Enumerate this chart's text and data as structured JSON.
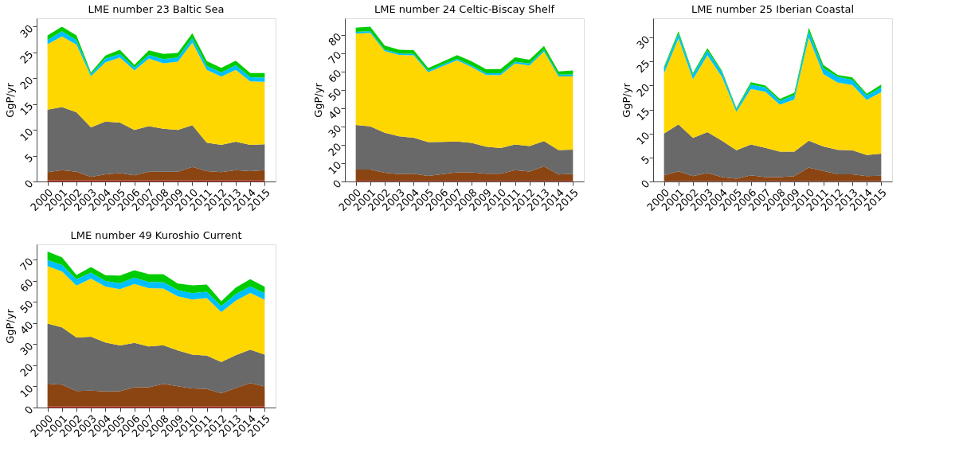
{
  "chart_data": [
    {
      "type": "area",
      "title": "LME number 23 Baltic Sea",
      "ylabel": "GgP/yr",
      "stacked": true,
      "grid": false,
      "categories": [
        "2000",
        "2001",
        "2002",
        "2003",
        "2004",
        "2005",
        "2006",
        "2007",
        "2008",
        "2009",
        "2010",
        "2011",
        "2012",
        "2013",
        "2014",
        "2015"
      ],
      "ylim": [
        0,
        31.6
      ],
      "yticks": [
        0,
        5,
        10,
        15,
        20,
        25,
        30
      ],
      "series": [
        {
          "color": "#d62728",
          "values": [
            0.2,
            0.2,
            0.2,
            0.2,
            0.2,
            0.2,
            0.2,
            0.2,
            0.2,
            0.2,
            0.2,
            0.2,
            0.2,
            0.2,
            0.2,
            0.2
          ]
        },
        {
          "color": "#8b4513",
          "values": [
            1.6,
            2.0,
            1.7,
            0.7,
            1.2,
            1.4,
            1.0,
            1.7,
            1.7,
            1.7,
            2.6,
            1.8,
            1.6,
            2.0,
            1.8,
            2.0
          ]
        },
        {
          "color": "#696969",
          "values": [
            12.1,
            12.2,
            11.5,
            9.6,
            10.2,
            9.8,
            8.8,
            8.8,
            8.3,
            8.1,
            8.1,
            5.5,
            5.3,
            5.5,
            5.1,
            5.0
          ]
        },
        {
          "color": "#ffd700",
          "values": [
            12.7,
            13.7,
            13.1,
            9.9,
            11.5,
            12.6,
            11.5,
            13.1,
            12.7,
            13.2,
            16.0,
            14.1,
            13.2,
            13.9,
            12.3,
            12.1
          ]
        },
        {
          "color": "#00bfff",
          "values": [
            0.8,
            1.0,
            0.9,
            0.4,
            0.7,
            0.7,
            0.6,
            0.7,
            0.8,
            0.8,
            0.9,
            0.8,
            0.8,
            0.9,
            0.8,
            0.8
          ]
        },
        {
          "color": "#00cc00",
          "values": [
            0.9,
            0.9,
            0.9,
            0.3,
            0.6,
            0.8,
            0.5,
            0.9,
            1.0,
            0.9,
            0.9,
            0.9,
            0.9,
            0.9,
            0.8,
            0.9
          ]
        }
      ]
    },
    {
      "type": "area",
      "title": "LME number 24 Celtic-Biscay Shelf",
      "ylabel": "GgP/yr",
      "stacked": true,
      "grid": false,
      "categories": [
        "2000",
        "2001",
        "2002",
        "2003",
        "2004",
        "2005",
        "2006",
        "2007",
        "2008",
        "2009",
        "2010",
        "2011",
        "2012",
        "2013",
        "2014",
        "2015"
      ],
      "ylim": [
        0,
        88.9
      ],
      "yticks": [
        0,
        10,
        20,
        30,
        40,
        50,
        60,
        70,
        80
      ],
      "series": [
        {
          "color": "#d62728",
          "values": [
            0.3,
            0.3,
            0.3,
            0.3,
            0.3,
            0.3,
            0.3,
            0.3,
            0.3,
            0.3,
            0.3,
            0.3,
            0.3,
            0.3,
            0.3,
            0.3
          ]
        },
        {
          "color": "#8b4513",
          "values": [
            6.2,
            6.2,
            4.5,
            3.7,
            3.9,
            2.7,
            3.7,
            4.7,
            4.7,
            3.9,
            3.9,
            5.9,
            5.1,
            7.9,
            3.5,
            3.9
          ]
        },
        {
          "color": "#696969",
          "values": [
            24.3,
            23.5,
            21.8,
            20.6,
            19.7,
            18.5,
            17.6,
            16.8,
            16.0,
            14.8,
            14.0,
            14.0,
            13.9,
            13.8,
            13.3,
            13.2
          ]
        },
        {
          "color": "#ffd700",
          "values": [
            49.7,
            51.0,
            44.4,
            44.4,
            44.8,
            38.0,
            41.2,
            44.2,
            41.3,
            39.0,
            39.8,
            44.1,
            43.9,
            48.8,
            40.1,
            39.8
          ]
        },
        {
          "color": "#00bfff",
          "values": [
            1.0,
            1.0,
            0.8,
            0.8,
            0.8,
            0.8,
            0.9,
            0.8,
            0.9,
            1.0,
            1.0,
            1.0,
            1.1,
            1.0,
            1.0,
            1.1
          ]
        },
        {
          "color": "#00cc00",
          "values": [
            2.3,
            2.4,
            2.2,
            2.0,
            2.0,
            1.5,
            1.6,
            2.0,
            2.3,
            2.2,
            2.3,
            2.3,
            2.0,
            2.0,
            1.8,
            2.2
          ]
        }
      ]
    },
    {
      "type": "area",
      "title": "LME number 25 Iberian Coastal",
      "ylabel": "GgP/yr",
      "stacked": true,
      "grid": false,
      "categories": [
        "2000",
        "2001",
        "2002",
        "2003",
        "2004",
        "2005",
        "2006",
        "2007",
        "2008",
        "2009",
        "2010",
        "2011",
        "2012",
        "2013",
        "2014",
        "2015"
      ],
      "ylim": [
        0,
        34
      ],
      "yticks": [
        0,
        5,
        10,
        15,
        20,
        25,
        30
      ],
      "series": [
        {
          "color": "#d62728",
          "values": [
            0.1,
            0.1,
            0.1,
            0.1,
            0.1,
            0.1,
            0.1,
            0.1,
            0.1,
            0.1,
            0.1,
            0.1,
            0.1,
            0.1,
            0.1,
            0.1
          ]
        },
        {
          "color": "#8b4513",
          "values": [
            1.2,
            2.0,
            1.0,
            1.7,
            0.8,
            0.5,
            1.2,
            0.8,
            0.8,
            1.0,
            2.8,
            2.1,
            1.4,
            1.4,
            1.0,
            1.1
          ]
        },
        {
          "color": "#696969",
          "values": [
            8.7,
            9.8,
            8.0,
            8.5,
            7.6,
            5.9,
            6.4,
            6.1,
            5.3,
            5.1,
            5.6,
            5.1,
            5.1,
            5.0,
            4.4,
            4.6
          ]
        },
        {
          "color": "#ffd700",
          "values": [
            12.5,
            17.9,
            12.2,
            16.0,
            13.3,
            8.0,
            11.6,
            11.7,
            9.8,
            10.9,
            21.5,
            15.1,
            14.0,
            13.6,
            11.5,
            12.8
          ]
        },
        {
          "color": "#00bfff",
          "values": [
            1.0,
            1.0,
            1.0,
            1.0,
            1.0,
            0.6,
            0.9,
            0.9,
            0.8,
            0.9,
            1.3,
            1.2,
            1.2,
            1.1,
            0.9,
            1.0
          ]
        },
        {
          "color": "#00cc00",
          "values": [
            0.4,
            0.5,
            0.3,
            0.5,
            0.3,
            0.2,
            0.5,
            0.4,
            0.4,
            0.5,
            0.7,
            0.7,
            0.4,
            0.5,
            0.4,
            0.6
          ]
        }
      ]
    },
    {
      "type": "area",
      "title": "LME number 49 Kuroshio Current",
      "ylabel": "GgP/yr",
      "stacked": true,
      "grid": false,
      "categories": [
        "2000",
        "2001",
        "2002",
        "2003",
        "2004",
        "2005",
        "2006",
        "2007",
        "2008",
        "2009",
        "2010",
        "2011",
        "2012",
        "2013",
        "2014",
        "2015"
      ],
      "ylim": [
        0,
        77.2
      ],
      "yticks": [
        0,
        10,
        20,
        30,
        40,
        50,
        60,
        70
      ],
      "series": [
        {
          "color": "#d62728",
          "values": [
            0.5,
            0.5,
            0.5,
            0.5,
            0.5,
            0.5,
            0.5,
            0.5,
            0.5,
            0.5,
            0.5,
            0.5,
            0.5,
            0.5,
            0.5,
            0.5
          ]
        },
        {
          "color": "#8b4513",
          "values": [
            10.8,
            10.3,
            7.3,
            7.5,
            7.1,
            7.2,
            9.1,
            9.1,
            10.7,
            9.6,
            8.5,
            8.3,
            6.3,
            8.7,
            11.1,
            9.5
          ]
        },
        {
          "color": "#696969",
          "values": [
            28.4,
            27.1,
            25.3,
            25.5,
            23.2,
            21.7,
            21.0,
            19.3,
            18.3,
            16.9,
            16.0,
            15.8,
            14.8,
            15.6,
            15.8,
            15.0
          ]
        },
        {
          "color": "#ffd700",
          "values": [
            27.2,
            26.5,
            24.6,
            27.5,
            26.4,
            26.6,
            27.9,
            27.6,
            26.8,
            25.6,
            26.1,
            27.2,
            23.6,
            25.8,
            26.8,
            26.0
          ]
        },
        {
          "color": "#00bfff",
          "values": [
            2.9,
            3.1,
            3.0,
            2.8,
            2.7,
            2.8,
            3.0,
            2.9,
            3.0,
            2.9,
            3.0,
            3.0,
            2.8,
            3.1,
            3.1,
            3.0
          ]
        },
        {
          "color": "#00cc00",
          "values": [
            4.0,
            3.6,
            2.0,
            2.7,
            2.7,
            3.6,
            3.5,
            3.7,
            3.8,
            3.2,
            3.7,
            3.4,
            2.3,
            3.1,
            3.4,
            3.1
          ]
        }
      ]
    }
  ]
}
